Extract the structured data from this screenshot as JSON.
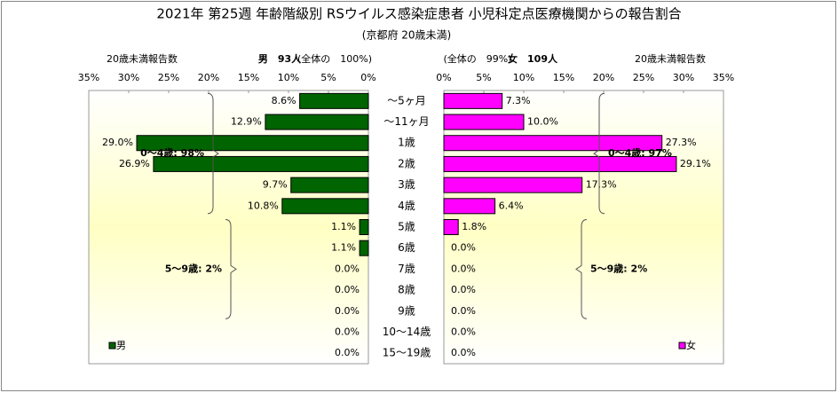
{
  "chart_data": {
    "type": "butterfly",
    "title": "2021年 第25週 年齢階級別 RSウイルス感染症患者 小児科定点医療機関からの報告割合",
    "subtitle": "(京都府 20歳未満)",
    "categories": [
      "～5ヶ月",
      "～11ヶ月",
      "1歳",
      "2歳",
      "3歳",
      "4歳",
      "5歳",
      "6歳",
      "7歳",
      "8歳",
      "9歳",
      "10～14歳",
      "15～19歳"
    ],
    "xlim": [
      0,
      35
    ],
    "xticks": [
      {
        "value": 0,
        "label": "0%"
      },
      {
        "value": 5,
        "label": "5%"
      },
      {
        "value": 10,
        "label": "10%"
      },
      {
        "value": 15,
        "label": "15%"
      },
      {
        "value": 20,
        "label": "20%"
      },
      {
        "value": 25,
        "label": "25%"
      },
      {
        "value": 30,
        "label": "30%"
      },
      {
        "value": 35,
        "label": "35%"
      }
    ],
    "series": [
      {
        "name": "男",
        "color": "#006400",
        "side": "left",
        "header": "20歳未満報告数",
        "total": "男　93人",
        "share": "(全体の　100%)",
        "values": [
          8.6,
          12.9,
          29.0,
          26.9,
          9.7,
          10.8,
          1.1,
          1.1,
          0,
          0,
          0,
          0,
          0
        ],
        "value_labels": [
          "8.6%",
          "12.9%",
          "29.0%",
          "26.9%",
          "9.7%",
          "10.8%",
          "1.1%",
          "1.1%",
          "0.0%",
          "0.0%",
          "0.0%",
          "0.0%",
          "0.0%"
        ],
        "annotations": [
          "0～4歳: 98%",
          "5～9歳: 2%"
        ]
      },
      {
        "name": "女",
        "color": "#ff00ff",
        "side": "right",
        "header": "20歳未満報告数",
        "total": "女　109人",
        "share": "(全体の　99%)",
        "values": [
          7.3,
          10.0,
          27.3,
          29.1,
          17.3,
          6.4,
          1.8,
          0,
          0,
          0,
          0,
          0,
          0
        ],
        "value_labels": [
          "7.3%",
          "10.0%",
          "27.3%",
          "29.1%",
          "17.3%",
          "6.4%",
          "1.8%",
          "0.0%",
          "0.0%",
          "0.0%",
          "0.0%",
          "0.0%",
          "0.0%"
        ],
        "annotations": [
          "0～4歳: 97%",
          "5～9歳: 2%"
        ]
      }
    ]
  }
}
